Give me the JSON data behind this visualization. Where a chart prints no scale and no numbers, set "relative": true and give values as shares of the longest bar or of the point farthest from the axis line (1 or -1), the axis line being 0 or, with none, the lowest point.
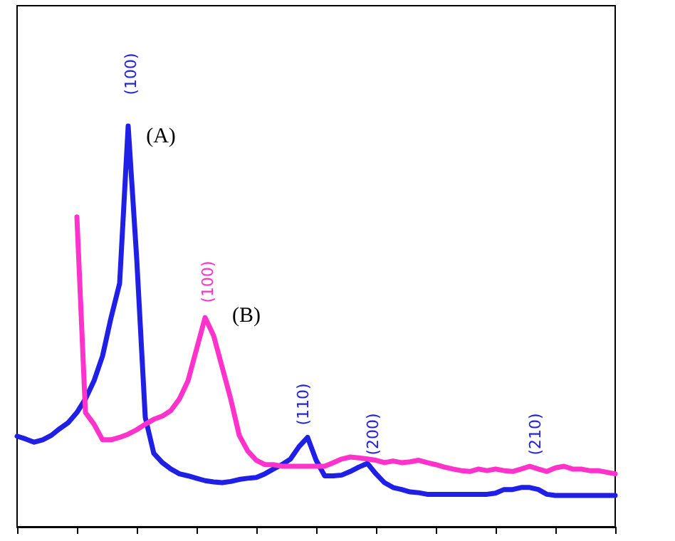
{
  "chart_data": {
    "type": "line",
    "relative": true,
    "grid": false,
    "marker": "none",
    "line_style": "solid",
    "categories": [
      null,
      null,
      null,
      null,
      null,
      null,
      null,
      null,
      null,
      null,
      null,
      null,
      null,
      null,
      null,
      null,
      null,
      null,
      null,
      null,
      null,
      null,
      null,
      null,
      null,
      null,
      null,
      null,
      null,
      null,
      null,
      null,
      null,
      null,
      null,
      null,
      null,
      null,
      null,
      null,
      null,
      null,
      null,
      null,
      null,
      null,
      null,
      null,
      null,
      null,
      null,
      null,
      null,
      null,
      null,
      null,
      null,
      null,
      null,
      null,
      null,
      null,
      null,
      null,
      null,
      null,
      null,
      null,
      null,
      null,
      null
    ],
    "series": [
      {
        "color": "#1f1fe6",
        "values": [
          0.226,
          0.219,
          0.211,
          0.217,
          0.228,
          0.245,
          0.26,
          0.285,
          0.319,
          0.364,
          0.426,
          0.522,
          0.607,
          1.0,
          0.669,
          0.273,
          0.183,
          0.16,
          0.144,
          0.132,
          0.127,
          0.121,
          0.115,
          0.112,
          0.11,
          0.113,
          0.118,
          0.121,
          0.123,
          0.132,
          0.144,
          0.155,
          0.169,
          0.2,
          0.223,
          0.166,
          0.127,
          0.127,
          0.129,
          0.138,
          0.149,
          0.158,
          0.132,
          0.11,
          0.098,
          0.093,
          0.087,
          0.085,
          0.081,
          0.081,
          0.081,
          0.081,
          0.081,
          0.081,
          0.081,
          0.081,
          0.084,
          0.093,
          0.093,
          0.098,
          0.098,
          0.093,
          0.081,
          0.078,
          0.078,
          0.078,
          0.078,
          0.078,
          0.078,
          0.078,
          0.078
        ]
      },
      {
        "color": "#ff33cc",
        "values": [
          null,
          null,
          null,
          null,
          null,
          null,
          null,
          0.773,
          0.285,
          0.256,
          0.217,
          0.217,
          0.223,
          0.231,
          0.242,
          0.256,
          0.268,
          0.276,
          0.29,
          0.319,
          0.364,
          0.443,
          0.522,
          0.477,
          0.398,
          0.319,
          0.228,
          0.189,
          0.166,
          0.155,
          0.155,
          0.151,
          0.151,
          0.151,
          0.151,
          0.151,
          0.151,
          0.16,
          0.169,
          0.174,
          0.172,
          0.169,
          0.166,
          0.16,
          0.164,
          0.16,
          0.162,
          0.166,
          0.16,
          0.155,
          0.149,
          0.144,
          0.14,
          0.138,
          0.144,
          0.14,
          0.144,
          0.14,
          0.138,
          0.144,
          0.151,
          0.144,
          0.138,
          0.147,
          0.151,
          0.144,
          0.144,
          0.14,
          0.14,
          0.136,
          0.132
        ]
      }
    ],
    "annotations": [
      "(A)",
      "(B)",
      "(100)",
      "(100)",
      "(110)",
      "(200)",
      "(210)"
    ]
  }
}
